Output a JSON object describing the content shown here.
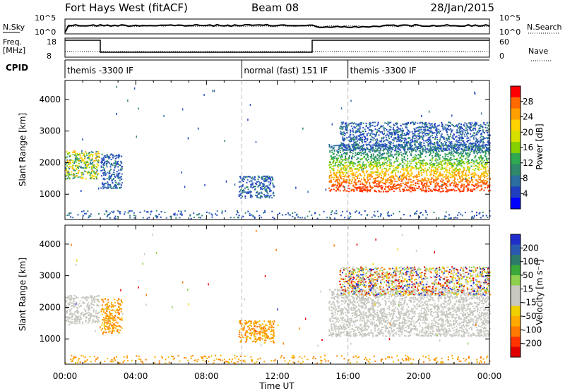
{
  "header": {
    "station": "Fort Hays West (fitACF)",
    "beam": "Beam 08",
    "date": "28/Jan/2015"
  },
  "top_panels": {
    "nsky_label": "N.Sky",
    "nsearch_label": "N.Search",
    "nsky_ticks": [
      "10^5",
      "10^0"
    ],
    "nsearch_ticks": [
      "10^5",
      "10^0"
    ],
    "freq_label_1": "Freq.",
    "freq_label_2": "[MHz]",
    "freq_ticks": [
      "18",
      "8"
    ],
    "nave_ticks": [
      "60",
      "0"
    ],
    "nave_label": "Nave",
    "cpid_label": "CPID",
    "cpid_segments": [
      {
        "label": "themis -3300 IF",
        "start_h": 0,
        "end_h": 10
      },
      {
        "label": "normal (fast) 151 IF",
        "start_h": 10,
        "end_h": 16
      },
      {
        "label": "themis -3300 IF",
        "start_h": 16,
        "end_h": 24
      }
    ]
  },
  "colorbars": {
    "power": {
      "label": "Power [dB]",
      "ticks": [
        "28",
        "24",
        "20",
        "16",
        "12",
        "8",
        "4"
      ],
      "colors": [
        "#ff0000",
        "#ff6a00",
        "#ff9f00",
        "#ffd200",
        "#d8e000",
        "#86d000",
        "#2fa84f",
        "#2e8a6a",
        "#2a6fa0",
        "#1f3fc0",
        "#0000ff"
      ]
    },
    "velocity": {
      "label": "Velocity [m s⁻¹]",
      "ticks": [
        "200",
        "100",
        "50",
        "15",
        "-15",
        "-50",
        "-100",
        "-200"
      ],
      "colors": [
        "#1f2fcc",
        "#2a5ab0",
        "#2e7a6a",
        "#3aa83a",
        "#8fd14f",
        "#c8c8c0",
        "#c8c8c0",
        "#f0d000",
        "#ffaa00",
        "#ff7a00",
        "#ff3300",
        "#e00000"
      ]
    }
  },
  "chart_data": [
    {
      "type": "heatmap",
      "name": "Power",
      "xlabel": "",
      "ylabel": "Slant Range [km]",
      "xlim": [
        0,
        24
      ],
      "ylim": [
        200,
        4600
      ],
      "y_ticks": [
        1000,
        2000,
        3000,
        4000
      ],
      "regions": [
        {
          "t0": 0.0,
          "t1": 1.9,
          "r0": 1500,
          "r1": 2400,
          "level": "mid"
        },
        {
          "t0": 2.0,
          "t1": 3.2,
          "r0": 1200,
          "r1": 2300,
          "level": "low"
        },
        {
          "t0": 9.8,
          "t1": 11.8,
          "r0": 900,
          "r1": 1600,
          "level": "low"
        },
        {
          "t0": 14.9,
          "t1": 24.0,
          "r0": 1100,
          "r1": 2600,
          "level": "high"
        },
        {
          "t0": 15.5,
          "t1": 24.0,
          "r0": 2400,
          "r1": 3300,
          "level": "low"
        }
      ]
    },
    {
      "type": "heatmap",
      "name": "Velocity",
      "xlabel": "Time UT",
      "ylabel": "Slant Range [km]",
      "xlim": [
        0,
        24
      ],
      "ylim": [
        200,
        4600
      ],
      "x_ticks": [
        "00:00",
        "04:00",
        "08:00",
        "12:00",
        "16:00",
        "20:00",
        "00:00"
      ],
      "y_ticks": [
        1000,
        2000,
        3000,
        4000
      ],
      "regions": [
        {
          "t0": 0.0,
          "t1": 1.9,
          "r0": 1500,
          "r1": 2400,
          "level": "ground"
        },
        {
          "t0": 2.0,
          "t1": 3.2,
          "r0": 1200,
          "r1": 2300,
          "level": "neg"
        },
        {
          "t0": 9.8,
          "t1": 11.8,
          "r0": 900,
          "r1": 1600,
          "level": "neg"
        },
        {
          "t0": 14.9,
          "t1": 24.0,
          "r0": 1100,
          "r1": 2600,
          "level": "ground"
        },
        {
          "t0": 15.5,
          "t1": 24.0,
          "r0": 2400,
          "r1": 3300,
          "level": "mixed"
        }
      ]
    }
  ]
}
